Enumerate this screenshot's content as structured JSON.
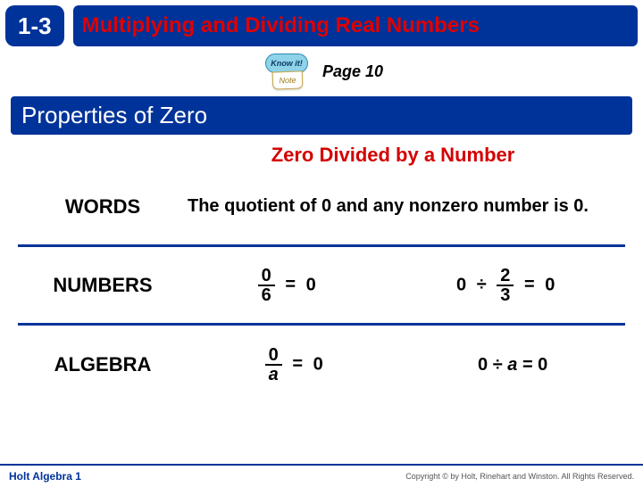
{
  "header": {
    "lesson_number": "1-3",
    "title": "Multiplying and Dividing Real Numbers"
  },
  "note": {
    "bubble": "Know it!",
    "tag": "Note",
    "page": "Page 10"
  },
  "section_title": "Properties of Zero",
  "subheading": "Zero Divided by a Number",
  "rows": {
    "words": {
      "label": "WORDS",
      "text": "The quotient of 0 and any nonzero number is 0."
    },
    "numbers": {
      "label": "NUMBERS",
      "ex1": {
        "num": "0",
        "den": "6",
        "result": "0"
      },
      "ex2": {
        "left": "0",
        "op": "÷",
        "fnum": "2",
        "fden": "3",
        "result": "0"
      }
    },
    "algebra": {
      "label": "ALGEBRA",
      "ex1": {
        "num": "0",
        "den": "a",
        "result": "0"
      },
      "ex2": {
        "text": "0 ÷ a = 0"
      }
    }
  },
  "footer": {
    "left": "Holt Algebra 1",
    "right": "Copyright © by Holt, Rinehart and Winston. All Rights Reserved."
  },
  "colors": {
    "brand_blue": "#003399",
    "accent_red": "#d40000"
  }
}
